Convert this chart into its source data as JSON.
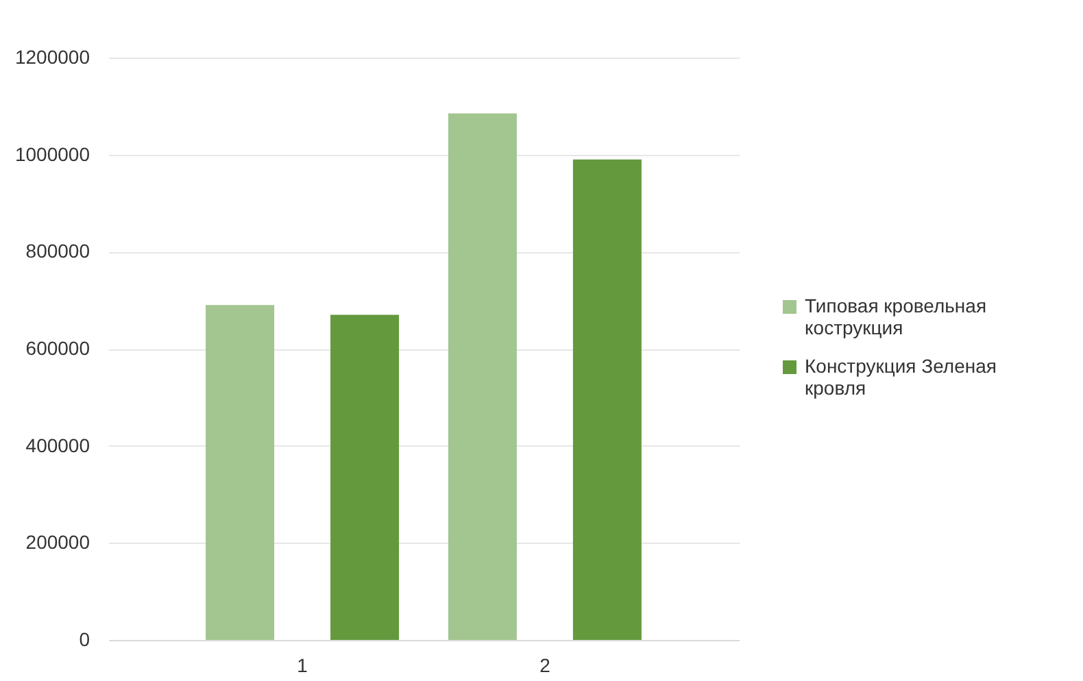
{
  "chart_data": {
    "type": "bar",
    "categories": [
      "1",
      "2"
    ],
    "series": [
      {
        "name": "Типовая кровельная кострукция",
        "color": "#a3c58f",
        "values": [
          690000,
          1085000
        ]
      },
      {
        "name": "Конструкция Зеленая кровля",
        "color": "#64993e",
        "values": [
          670000,
          990000
        ]
      }
    ],
    "ylim": [
      0,
      1200000
    ],
    "yticks": [
      0,
      200000,
      400000,
      600000,
      800000,
      1000000,
      1200000
    ],
    "grid": "y",
    "legend": "right"
  }
}
